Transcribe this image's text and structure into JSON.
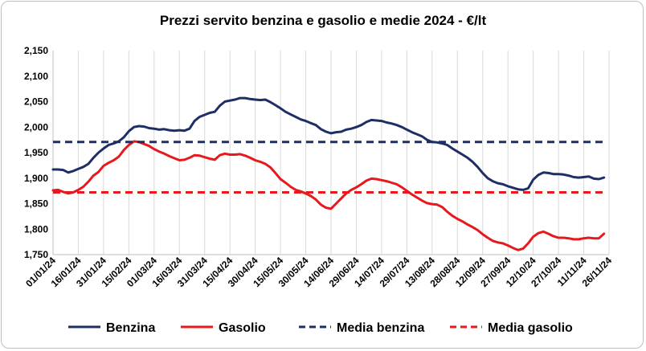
{
  "chart_data": {
    "type": "line",
    "title": "Prezzi servito benzina e gasolio e medie 2024 - €/lt",
    "xlabel": "",
    "ylabel": "",
    "ylim": [
      1.75,
      2.15
    ],
    "yticks": [
      "1,750",
      "1,800",
      "1,850",
      "1,900",
      "1,950",
      "2,000",
      "2,050",
      "2,100",
      "2,150"
    ],
    "xticks": [
      "01/01/24",
      "16/01/24",
      "31/01/24",
      "15/02/24",
      "01/03/24",
      "16/03/24",
      "31/03/24",
      "15/04/24",
      "30/04/24",
      "15/05/24",
      "30/05/24",
      "14/06/24",
      "29/06/24",
      "14/07/24",
      "29/07/24",
      "13/08/24",
      "28/08/24",
      "12/09/24",
      "27/09/24",
      "12/10/24",
      "27/10/24",
      "11/11/24",
      "26/11/24"
    ],
    "grid": "vertical",
    "legend_position": "bottom",
    "series": [
      {
        "name": "Benzina",
        "color": "#1f2f66",
        "style": "solid",
        "points": [
          [
            "01/01/24",
            1.917
          ],
          [
            "04/01/24",
            1.917
          ],
          [
            "07/01/24",
            1.916
          ],
          [
            "10/01/24",
            1.911
          ],
          [
            "13/01/24",
            1.914
          ],
          [
            "16/01/24",
            1.918
          ],
          [
            "19/01/24",
            1.922
          ],
          [
            "22/01/24",
            1.928
          ],
          [
            "25/01/24",
            1.94
          ],
          [
            "28/01/24",
            1.95
          ],
          [
            "31/01/24",
            1.958
          ],
          [
            "03/02/24",
            1.965
          ],
          [
            "06/02/24",
            1.968
          ],
          [
            "09/02/24",
            1.972
          ],
          [
            "12/02/24",
            1.98
          ],
          [
            "15/02/24",
            1.992
          ],
          [
            "18/02/24",
            2.0
          ],
          [
            "21/02/24",
            2.002
          ],
          [
            "24/02/24",
            2.001
          ],
          [
            "27/02/24",
            1.998
          ],
          [
            "01/03/24",
            1.997
          ],
          [
            "04/03/24",
            1.995
          ],
          [
            "07/03/24",
            1.996
          ],
          [
            "10/03/24",
            1.994
          ],
          [
            "13/03/24",
            1.993
          ],
          [
            "16/03/24",
            1.994
          ],
          [
            "19/03/24",
            1.993
          ],
          [
            "22/03/24",
            1.997
          ],
          [
            "25/03/24",
            2.012
          ],
          [
            "28/03/24",
            2.02
          ],
          [
            "31/03/24",
            2.024
          ],
          [
            "03/04/24",
            2.028
          ],
          [
            "06/04/24",
            2.03
          ],
          [
            "09/04/24",
            2.042
          ],
          [
            "12/04/24",
            2.05
          ],
          [
            "15/04/24",
            2.052
          ],
          [
            "18/04/24",
            2.054
          ],
          [
            "21/04/24",
            2.057
          ],
          [
            "24/04/24",
            2.057
          ],
          [
            "27/04/24",
            2.055
          ],
          [
            "30/04/24",
            2.054
          ],
          [
            "03/05/24",
            2.053
          ],
          [
            "06/05/24",
            2.054
          ],
          [
            "09/05/24",
            2.049
          ],
          [
            "12/05/24",
            2.043
          ],
          [
            "15/05/24",
            2.037
          ],
          [
            "18/05/24",
            2.03
          ],
          [
            "21/05/24",
            2.025
          ],
          [
            "24/05/24",
            2.02
          ],
          [
            "27/05/24",
            2.015
          ],
          [
            "30/05/24",
            2.012
          ],
          [
            "02/06/24",
            2.008
          ],
          [
            "05/06/24",
            2.004
          ],
          [
            "08/06/24",
            1.996
          ],
          [
            "11/06/24",
            1.991
          ],
          [
            "14/06/24",
            1.988
          ],
          [
            "17/06/24",
            1.99
          ],
          [
            "20/06/24",
            1.991
          ],
          [
            "23/06/24",
            1.995
          ],
          [
            "26/06/24",
            1.997
          ],
          [
            "29/06/24",
            2.0
          ],
          [
            "02/07/24",
            2.004
          ],
          [
            "05/07/24",
            2.01
          ],
          [
            "08/07/24",
            2.014
          ],
          [
            "11/07/24",
            2.013
          ],
          [
            "14/07/24",
            2.012
          ],
          [
            "17/07/24",
            2.009
          ],
          [
            "20/07/24",
            2.007
          ],
          [
            "23/07/24",
            2.004
          ],
          [
            "26/07/24",
            2.0
          ],
          [
            "29/07/24",
            1.995
          ],
          [
            "01/08/24",
            1.99
          ],
          [
            "04/08/24",
            1.986
          ],
          [
            "07/08/24",
            1.982
          ],
          [
            "10/08/24",
            1.975
          ],
          [
            "13/08/24",
            1.971
          ],
          [
            "16/08/24",
            1.97
          ],
          [
            "19/08/24",
            1.968
          ],
          [
            "22/08/24",
            1.965
          ],
          [
            "25/08/24",
            1.958
          ],
          [
            "28/08/24",
            1.952
          ],
          [
            "31/08/24",
            1.946
          ],
          [
            "03/09/24",
            1.94
          ],
          [
            "06/09/24",
            1.932
          ],
          [
            "09/09/24",
            1.922
          ],
          [
            "12/09/24",
            1.91
          ],
          [
            "15/09/24",
            1.9
          ],
          [
            "18/09/24",
            1.894
          ],
          [
            "21/09/24",
            1.89
          ],
          [
            "24/09/24",
            1.888
          ],
          [
            "27/09/24",
            1.884
          ],
          [
            "30/09/24",
            1.881
          ],
          [
            "03/10/24",
            1.878
          ],
          [
            "06/10/24",
            1.877
          ],
          [
            "09/10/24",
            1.88
          ],
          [
            "12/10/24",
            1.897
          ],
          [
            "15/10/24",
            1.906
          ],
          [
            "18/10/24",
            1.911
          ],
          [
            "21/10/24",
            1.91
          ],
          [
            "24/10/24",
            1.908
          ],
          [
            "27/10/24",
            1.908
          ],
          [
            "30/10/24",
            1.907
          ],
          [
            "02/11/24",
            1.905
          ],
          [
            "05/11/24",
            1.902
          ],
          [
            "08/11/24",
            1.901
          ],
          [
            "11/11/24",
            1.902
          ],
          [
            "14/11/24",
            1.903
          ],
          [
            "17/11/24",
            1.899
          ],
          [
            "20/11/24",
            1.898
          ],
          [
            "23/11/24",
            1.901
          ]
        ]
      },
      {
        "name": "Gasolio",
        "color": "#e8191d",
        "style": "solid",
        "points": [
          [
            "01/01/24",
            1.876
          ],
          [
            "04/01/24",
            1.877
          ],
          [
            "07/01/24",
            1.873
          ],
          [
            "10/01/24",
            1.87
          ],
          [
            "13/01/24",
            1.872
          ],
          [
            "16/01/24",
            1.877
          ],
          [
            "19/01/24",
            1.883
          ],
          [
            "22/01/24",
            1.893
          ],
          [
            "25/01/24",
            1.905
          ],
          [
            "28/01/24",
            1.912
          ],
          [
            "31/01/24",
            1.924
          ],
          [
            "03/02/24",
            1.93
          ],
          [
            "06/02/24",
            1.935
          ],
          [
            "09/02/24",
            1.942
          ],
          [
            "12/02/24",
            1.955
          ],
          [
            "15/02/24",
            1.965
          ],
          [
            "18/02/24",
            1.972
          ],
          [
            "21/02/24",
            1.971
          ],
          [
            "24/02/24",
            1.967
          ],
          [
            "27/02/24",
            1.963
          ],
          [
            "01/03/24",
            1.957
          ],
          [
            "04/03/24",
            1.952
          ],
          [
            "07/03/24",
            1.948
          ],
          [
            "10/03/24",
            1.943
          ],
          [
            "13/03/24",
            1.939
          ],
          [
            "16/03/24",
            1.935
          ],
          [
            "19/03/24",
            1.936
          ],
          [
            "22/03/24",
            1.94
          ],
          [
            "25/03/24",
            1.945
          ],
          [
            "28/03/24",
            1.944
          ],
          [
            "31/03/24",
            1.941
          ],
          [
            "03/04/24",
            1.938
          ],
          [
            "06/04/24",
            1.936
          ],
          [
            "09/04/24",
            1.945
          ],
          [
            "12/04/24",
            1.948
          ],
          [
            "15/04/24",
            1.946
          ],
          [
            "18/04/24",
            1.946
          ],
          [
            "21/04/24",
            1.947
          ],
          [
            "24/04/24",
            1.944
          ],
          [
            "27/04/24",
            1.94
          ],
          [
            "30/04/24",
            1.935
          ],
          [
            "03/05/24",
            1.932
          ],
          [
            "06/05/24",
            1.928
          ],
          [
            "09/05/24",
            1.921
          ],
          [
            "12/05/24",
            1.91
          ],
          [
            "15/05/24",
            1.898
          ],
          [
            "18/05/24",
            1.891
          ],
          [
            "21/05/24",
            1.883
          ],
          [
            "24/05/24",
            1.877
          ],
          [
            "27/05/24",
            1.874
          ],
          [
            "30/05/24",
            1.87
          ],
          [
            "02/06/24",
            1.865
          ],
          [
            "05/06/24",
            1.858
          ],
          [
            "08/06/24",
            1.848
          ],
          [
            "11/06/24",
            1.842
          ],
          [
            "14/06/24",
            1.84
          ],
          [
            "17/06/24",
            1.85
          ],
          [
            "20/06/24",
            1.86
          ],
          [
            "23/06/24",
            1.87
          ],
          [
            "26/06/24",
            1.877
          ],
          [
            "29/06/24",
            1.882
          ],
          [
            "02/07/24",
            1.888
          ],
          [
            "05/07/24",
            1.895
          ],
          [
            "08/07/24",
            1.899
          ],
          [
            "11/07/24",
            1.898
          ],
          [
            "14/07/24",
            1.896
          ],
          [
            "17/07/24",
            1.894
          ],
          [
            "20/07/24",
            1.891
          ],
          [
            "23/07/24",
            1.888
          ],
          [
            "26/07/24",
            1.882
          ],
          [
            "29/07/24",
            1.875
          ],
          [
            "01/08/24",
            1.868
          ],
          [
            "04/08/24",
            1.862
          ],
          [
            "07/08/24",
            1.856
          ],
          [
            "10/08/24",
            1.851
          ],
          [
            "13/08/24",
            1.849
          ],
          [
            "16/08/24",
            1.848
          ],
          [
            "19/08/24",
            1.843
          ],
          [
            "22/08/24",
            1.834
          ],
          [
            "25/08/24",
            1.826
          ],
          [
            "28/08/24",
            1.82
          ],
          [
            "31/08/24",
            1.815
          ],
          [
            "03/09/24",
            1.809
          ],
          [
            "06/09/24",
            1.804
          ],
          [
            "09/09/24",
            1.798
          ],
          [
            "12/09/24",
            1.79
          ],
          [
            "15/09/24",
            1.783
          ],
          [
            "18/09/24",
            1.777
          ],
          [
            "21/09/24",
            1.774
          ],
          [
            "24/09/24",
            1.772
          ],
          [
            "27/09/24",
            1.768
          ],
          [
            "30/09/24",
            1.763
          ],
          [
            "03/10/24",
            1.759
          ],
          [
            "06/10/24",
            1.762
          ],
          [
            "09/10/24",
            1.772
          ],
          [
            "12/10/24",
            1.785
          ],
          [
            "15/10/24",
            1.792
          ],
          [
            "18/10/24",
            1.795
          ],
          [
            "21/10/24",
            1.791
          ],
          [
            "24/10/24",
            1.786
          ],
          [
            "27/10/24",
            1.783
          ],
          [
            "30/10/24",
            1.783
          ],
          [
            "02/11/24",
            1.782
          ],
          [
            "05/11/24",
            1.78
          ],
          [
            "08/11/24",
            1.78
          ],
          [
            "11/11/24",
            1.782
          ],
          [
            "14/11/24",
            1.783
          ],
          [
            "17/11/24",
            1.782
          ],
          [
            "20/11/24",
            1.782
          ],
          [
            "23/11/24",
            1.791
          ]
        ]
      },
      {
        "name": "Media benzina",
        "color": "#1f2f66",
        "style": "dashed",
        "points": [
          [
            "01/01/24",
            1.971
          ],
          [
            "23/11/24",
            1.971
          ]
        ]
      },
      {
        "name": "Media gasolio",
        "color": "#e8191d",
        "style": "dashed",
        "points": [
          [
            "01/01/24",
            1.872
          ],
          [
            "23/11/24",
            1.872
          ]
        ]
      }
    ]
  }
}
